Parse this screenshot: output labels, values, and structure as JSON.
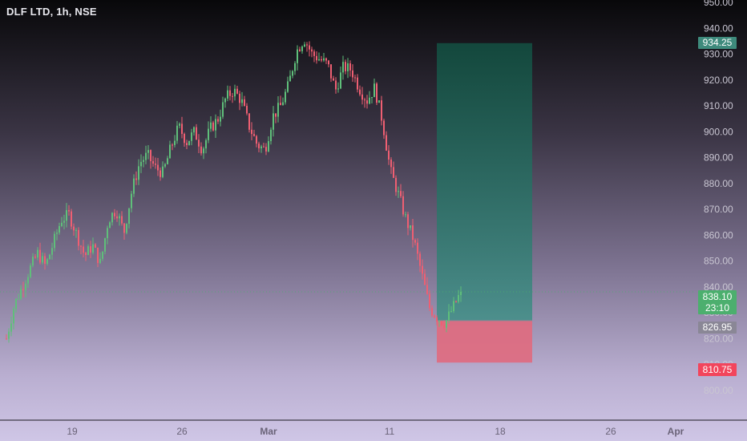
{
  "header": {
    "symbol": "DLF LTD, 1h, NSE"
  },
  "colors": {
    "up": "#5fbf7a",
    "down": "#ef5f72",
    "target_zone": "#2d6e62",
    "stop_zone": "#e06a7e",
    "axis_text": "#c9c6d2"
  },
  "chart_data": {
    "type": "candlestick",
    "title": "DLF LTD, 1h, NSE",
    "ylim": [
      795,
      950
    ],
    "y_ticks": [
      950,
      940,
      930,
      920,
      910,
      900,
      890,
      880,
      870,
      860,
      850,
      840,
      830,
      820,
      810,
      800
    ],
    "y_tick_labels": [
      "950.00",
      "940.00",
      "930.00",
      "920.00",
      "910.00",
      "900.00",
      "890.00",
      "880.00",
      "870.00",
      "860.00",
      "850.00",
      "840.00",
      "830.00",
      "820.00",
      "810.00",
      "800.00"
    ],
    "x_tick_labels": [
      "19",
      "26",
      "Mar",
      "11",
      "18",
      "26",
      "Apr"
    ],
    "price_path": [
      820,
      833,
      840,
      847,
      853,
      848,
      857,
      866,
      868,
      860,
      852,
      856,
      849,
      866,
      870,
      861,
      877,
      888,
      891,
      886,
      884,
      894,
      902,
      896,
      900,
      893,
      901,
      905,
      913,
      916,
      912,
      902,
      895,
      893,
      906,
      910,
      918,
      931,
      936,
      930,
      928,
      926,
      916,
      925,
      924,
      917,
      912,
      917,
      904,
      885,
      876,
      866,
      858,
      845,
      832,
      828,
      826,
      832,
      838
    ],
    "position": {
      "target": 934.25,
      "entry": 826.95,
      "stop": 810.75
    },
    "last_price": 838.1,
    "countdown": "23:10"
  },
  "badges": {
    "target": "934.25",
    "last_price": "838.10",
    "countdown": "23:10",
    "entry": "826.95",
    "stop": "810.75"
  }
}
